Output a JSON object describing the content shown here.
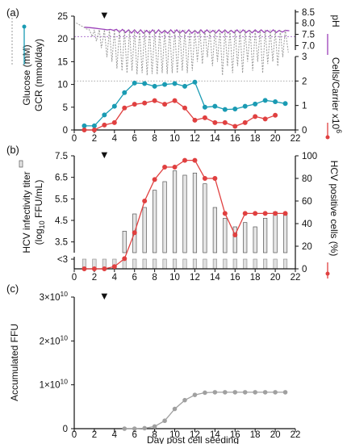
{
  "chart_data": [
    {
      "panel": "(a)",
      "type": "line",
      "xlabel": "",
      "xlim": [
        0,
        22
      ],
      "x_ticks": [
        "0",
        "2",
        "4",
        "6",
        "8",
        "10",
        "12",
        "14",
        "16",
        "18",
        "20",
        "22"
      ],
      "marker": {
        "x": 3,
        "symbol": "▼"
      },
      "left_axis": {
        "label_lines": [
          "Glucose (mM)",
          "GCR (mmol/day)"
        ],
        "ylim": [
          0,
          25
        ],
        "ticks": [
          "0",
          "5",
          "10",
          "15",
          "20",
          "25"
        ]
      },
      "right_axis_top": {
        "label": "pH",
        "ylim": [
          6.8,
          8.6
        ],
        "ticks": [
          "7.0",
          "7.5",
          "8.0",
          "8.5"
        ],
        "reference_line": 7.4
      },
      "right_axis_bottom": {
        "label": "Cells/Carrier x10",
        "label_exponent": "6",
        "ylim": [
          0,
          3
        ],
        "ticks": [
          "0",
          "1",
          "2",
          "3"
        ],
        "reference_line": 2.0
      },
      "series": [
        {
          "axis": "left",
          "color": "#1a9bb3",
          "style": "line-markers",
          "x": [
            1,
            2,
            3,
            4,
            5,
            6,
            7,
            8,
            9,
            10,
            11,
            12,
            13,
            14,
            15,
            16,
            17,
            18,
            19,
            20,
            21
          ],
          "values": [
            0.9,
            0.9,
            3.3,
            5.2,
            8.2,
            10.3,
            10.2,
            9.6,
            10.0,
            10.2,
            9.6,
            10.5,
            5.0,
            5.2,
            4.5,
            4.6,
            5.2,
            5.7,
            6.5,
            6.2,
            5.8
          ]
        },
        {
          "axis": "right_bottom",
          "color": "#e04040",
          "style": "line-markers",
          "x": [
            1,
            2,
            3,
            4,
            5,
            6,
            7,
            8,
            9,
            10,
            11,
            12,
            13,
            14,
            15,
            16,
            17,
            18,
            19,
            20
          ],
          "values": [
            0.0,
            0.0,
            0.2,
            0.3,
            0.9,
            1.05,
            1.1,
            1.2,
            1.05,
            1.2,
            0.9,
            0.4,
            0.5,
            0.3,
            0.3,
            0.15,
            0.3,
            0.55,
            0.45,
            0.6
          ]
        },
        {
          "axis": "right_top",
          "color": "#9a3fb8",
          "style": "line",
          "x": [
            1,
            1.5,
            2,
            2.5,
            3,
            3.3,
            3.6,
            3.9,
            4.2,
            4.5,
            4.8,
            5.1,
            5.4,
            5.7,
            6,
            6.3,
            6.6,
            6.9,
            7.2,
            7.5,
            7.8,
            8.1,
            8.4,
            8.7,
            9,
            9.3,
            9.6,
            9.9,
            10.2,
            10.5,
            10.8,
            11.1,
            11.4,
            11.7,
            12,
            12.3,
            12.6,
            12.9,
            13.2,
            13.5,
            13.8,
            14.1,
            14.4,
            14.7,
            15,
            15.3,
            15.6,
            15.9,
            16.2,
            16.5,
            16.8,
            17.1,
            17.4,
            17.7,
            18,
            18.3,
            18.6,
            18.9,
            19.2,
            19.5,
            19.8,
            20.1,
            20.4,
            20.7,
            21,
            21.4
          ],
          "values": [
            7.82,
            7.8,
            7.78,
            7.75,
            7.72,
            7.7,
            7.72,
            7.68,
            7.72,
            7.6,
            7.72,
            7.58,
            7.7,
            7.56,
            7.7,
            7.55,
            7.7,
            7.55,
            7.68,
            7.55,
            7.7,
            7.55,
            7.7,
            7.56,
            7.68,
            7.55,
            7.7,
            7.56,
            7.7,
            7.55,
            7.68,
            7.55,
            7.7,
            7.55,
            7.68,
            7.55,
            7.7,
            7.56,
            7.7,
            7.57,
            7.68,
            7.56,
            7.7,
            7.57,
            7.7,
            7.56,
            7.68,
            7.57,
            7.7,
            7.56,
            7.7,
            7.58,
            7.68,
            7.57,
            7.7,
            7.58,
            7.7,
            7.58,
            7.68,
            7.58,
            7.7,
            7.58,
            7.68,
            7.6,
            7.68,
            7.66
          ]
        },
        {
          "axis": "left",
          "color": "#999999",
          "style": "dotted",
          "x": [
            0.2,
            0.6,
            1,
            1.2,
            1.5,
            1.8,
            2,
            2.2,
            2.5,
            2.7,
            3,
            3.25,
            3.5,
            3.75,
            4,
            4.25,
            4.5,
            4.75,
            5,
            5.25,
            5.5,
            5.75,
            6,
            6.25,
            6.5,
            6.75,
            7,
            7.25,
            7.5,
            7.75,
            8,
            8.25,
            8.5,
            8.75,
            9,
            9.25,
            9.5,
            9.75,
            10,
            10.25,
            10.5,
            10.75,
            11,
            11.25,
            11.5,
            11.75,
            12,
            12.25,
            12.5,
            12.75,
            13,
            13.25,
            13.5,
            13.75,
            14,
            14.25,
            14.5,
            14.75,
            15,
            15.25,
            15.5,
            15.75,
            16,
            16.25,
            16.5,
            16.75,
            17,
            17.25,
            17.5,
            17.75,
            18,
            18.25,
            18.5,
            18.75,
            19,
            19.25,
            19.5,
            19.75,
            20,
            20.25,
            20.5,
            20.75,
            21,
            21.3
          ],
          "values": [
            23.5,
            23,
            22.5,
            22.2,
            22,
            20.5,
            22,
            19.5,
            22,
            18,
            22,
            16,
            22,
            15,
            22,
            13.5,
            22,
            13,
            22,
            12.5,
            22,
            13,
            22,
            12.2,
            22,
            12.5,
            22,
            12,
            22,
            12.3,
            22,
            12.2,
            22,
            12.5,
            22,
            12.3,
            22,
            12.5,
            22,
            12.5,
            22,
            13,
            22,
            12.5,
            22,
            13,
            22,
            15,
            22,
            14.5,
            22,
            16,
            22,
            14,
            22,
            15,
            22,
            12,
            22,
            14,
            22,
            12.5,
            22,
            14,
            22,
            12.5,
            22,
            15,
            22,
            13,
            22,
            15,
            22,
            12.5,
            22,
            14.5,
            22,
            15,
            22,
            14,
            22,
            16,
            22,
            17
          ]
        }
      ]
    },
    {
      "panel": "(b)",
      "type": "bar",
      "xlabel": "",
      "xlim": [
        0,
        22
      ],
      "x_ticks": [
        "0",
        "2",
        "4",
        "6",
        "8",
        "10",
        "12",
        "14",
        "16",
        "18",
        "20",
        "22"
      ],
      "marker": {
        "x": 3,
        "symbol": "▼"
      },
      "left_axis": {
        "label_lines": [
          "HCV infectivity titer",
          "(log",
          "10",
          " FFU/mL)"
        ],
        "ylim": [
          3.0,
          7.5
        ],
        "ticks": [
          "3.5",
          "4.5",
          "5.5",
          "6.5",
          "7.5"
        ],
        "below_label": "<3"
      },
      "right_axis": {
        "label": "HCV positive cells (%)",
        "ylim": [
          0,
          100
        ],
        "ticks": [
          "0",
          "20",
          "40",
          "60",
          "80",
          "100"
        ]
      },
      "bars": {
        "categories": [
          1,
          2,
          3,
          4,
          5,
          6,
          7,
          8,
          9,
          10,
          11,
          12,
          13,
          14,
          15,
          16,
          17,
          18,
          19,
          20,
          21
        ],
        "values": [
          3.0,
          3.0,
          3.0,
          3.0,
          4.0,
          4.8,
          5.1,
          5.9,
          6.3,
          6.8,
          6.6,
          6.7,
          6.2,
          5.1,
          4.6,
          4.2,
          4.4,
          4.2,
          4.6,
          4.9,
          4.8
        ],
        "below_detection": [
          true,
          true,
          true,
          true,
          false,
          false,
          false,
          false,
          false,
          false,
          false,
          false,
          false,
          false,
          false,
          false,
          false,
          false,
          false,
          false,
          false
        ]
      },
      "series": [
        {
          "axis": "right",
          "color": "#e04040",
          "style": "line-markers",
          "x": [
            1,
            2,
            3,
            4,
            5,
            6,
            7,
            8,
            9,
            10,
            11,
            12,
            13,
            14,
            15,
            16,
            17,
            18,
            19,
            20,
            21
          ],
          "values": [
            0,
            0,
            0,
            2,
            9,
            32,
            60,
            79,
            90,
            90,
            96,
            96,
            80,
            80,
            49,
            30,
            49,
            49,
            49,
            49,
            49
          ]
        }
      ]
    },
    {
      "panel": "(c)",
      "type": "line",
      "xlabel": "Day post cell seeding",
      "xlim": [
        0,
        22
      ],
      "x_ticks": [
        "0",
        "2",
        "4",
        "6",
        "8",
        "10",
        "12",
        "14",
        "16",
        "18",
        "20",
        "22"
      ],
      "marker": {
        "x": 3,
        "symbol": "▼"
      },
      "left_axis": {
        "label": "Accumulated FFU",
        "ylim": [
          0,
          30000000000.0
        ],
        "ticks": [
          {
            "value": 0,
            "mantissa": "0",
            "exp": ""
          },
          {
            "value": 10000000000.0,
            "mantissa": "1×10",
            "exp": "10"
          },
          {
            "value": 20000000000.0,
            "mantissa": "2×10",
            "exp": "10"
          },
          {
            "value": 30000000000.0,
            "mantissa": "3×10",
            "exp": "10"
          }
        ]
      },
      "series": [
        {
          "axis": "left",
          "color": "#a0a0a0",
          "style": "line-markers",
          "x": [
            5,
            6,
            7,
            8,
            9,
            10,
            11,
            12,
            13,
            14,
            15,
            16,
            17,
            18,
            19,
            20,
            21
          ],
          "values": [
            0,
            0,
            100000000.0,
            500000000.0,
            1800000000.0,
            4500000000.0,
            6500000000.0,
            7700000000.0,
            8200000000.0,
            8300000000.0,
            8300000000.0,
            8300000000.0,
            8300000000.0,
            8300000000.0,
            8300000000.0,
            8300000000.0,
            8300000000.0
          ]
        }
      ]
    }
  ]
}
